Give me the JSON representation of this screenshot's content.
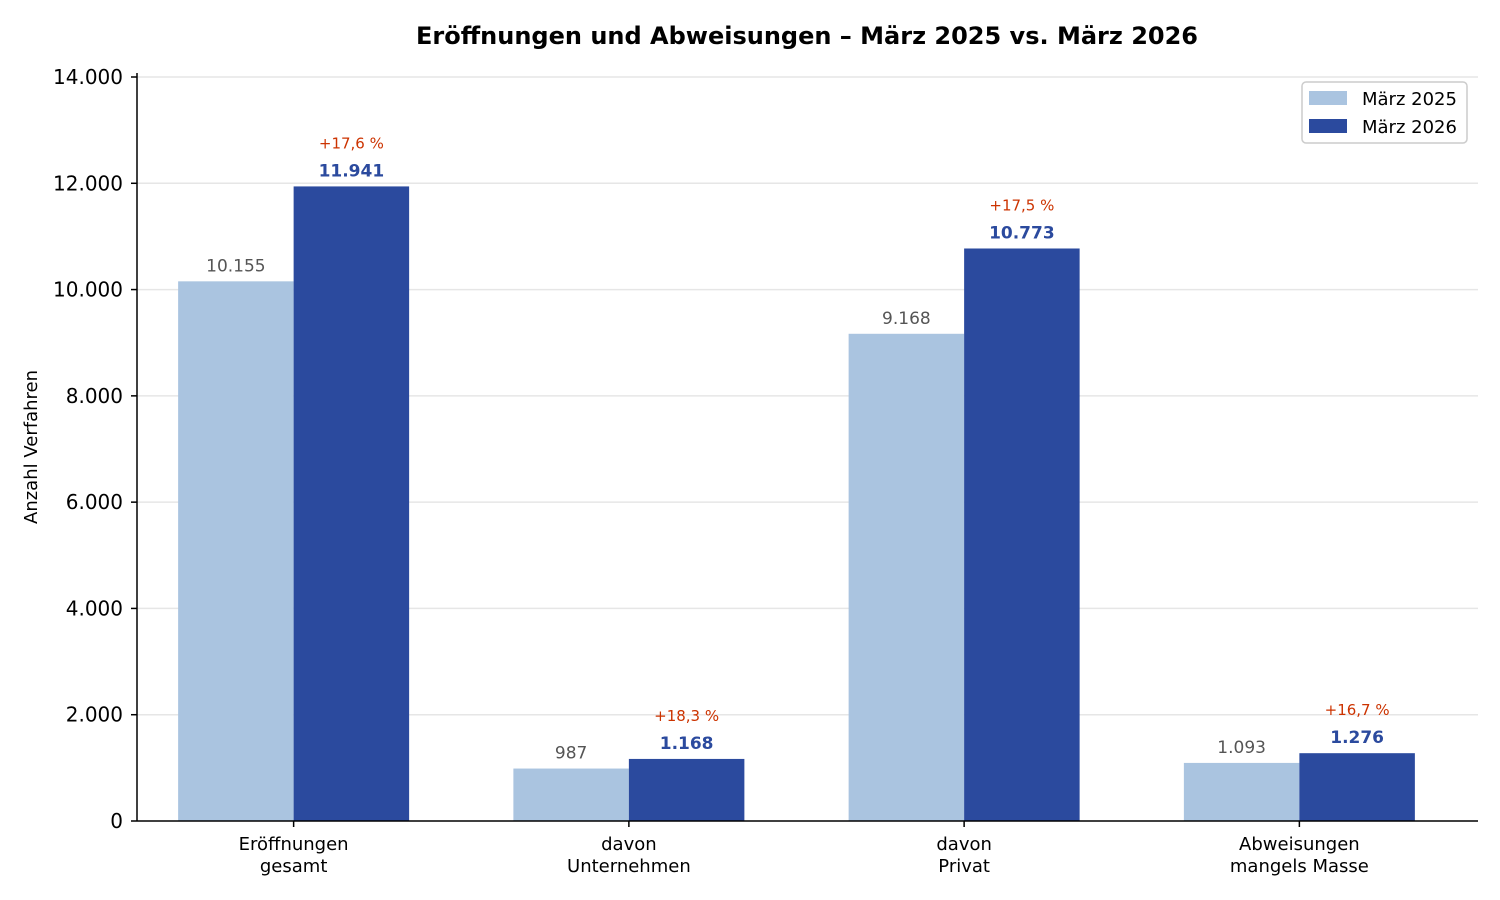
{
  "chart_data": {
    "type": "bar",
    "title": "Eröffnungen und Abweisungen – März 2025 vs. März 2026",
    "ylabel": "Anzahl Verfahren",
    "xlabel": "",
    "ylim": [
      0,
      14000
    ],
    "yticks": [
      0,
      2000,
      4000,
      6000,
      8000,
      10000,
      12000,
      14000
    ],
    "ytick_labels": [
      "0",
      "2.000",
      "4.000",
      "6.000",
      "8.000",
      "10.000",
      "12.000",
      "14.000"
    ],
    "grid": "horizontal",
    "legend_position": "top-right",
    "categories": [
      [
        "Eröffnungen",
        "gesamt"
      ],
      [
        "davon",
        "Unternehmen"
      ],
      [
        "davon",
        "Privat"
      ],
      [
        "Abweisungen",
        "mangels Masse"
      ]
    ],
    "series": [
      {
        "name": "März 2025",
        "color": "#aac4e0",
        "values": [
          10155,
          987,
          9168,
          1093
        ],
        "labels": [
          "10.155",
          "987",
          "9.168",
          "1.093"
        ]
      },
      {
        "name": "März 2026",
        "color": "#2b4a9e",
        "values": [
          11941,
          1168,
          10773,
          1276
        ],
        "labels": [
          "11.941",
          "1.168",
          "10.773",
          "1.276"
        ]
      }
    ],
    "change_labels": [
      "+17,6 %",
      "+18,3 %",
      "+17,5 %",
      "+16,7 %"
    ],
    "change_color": "#cc3300"
  }
}
